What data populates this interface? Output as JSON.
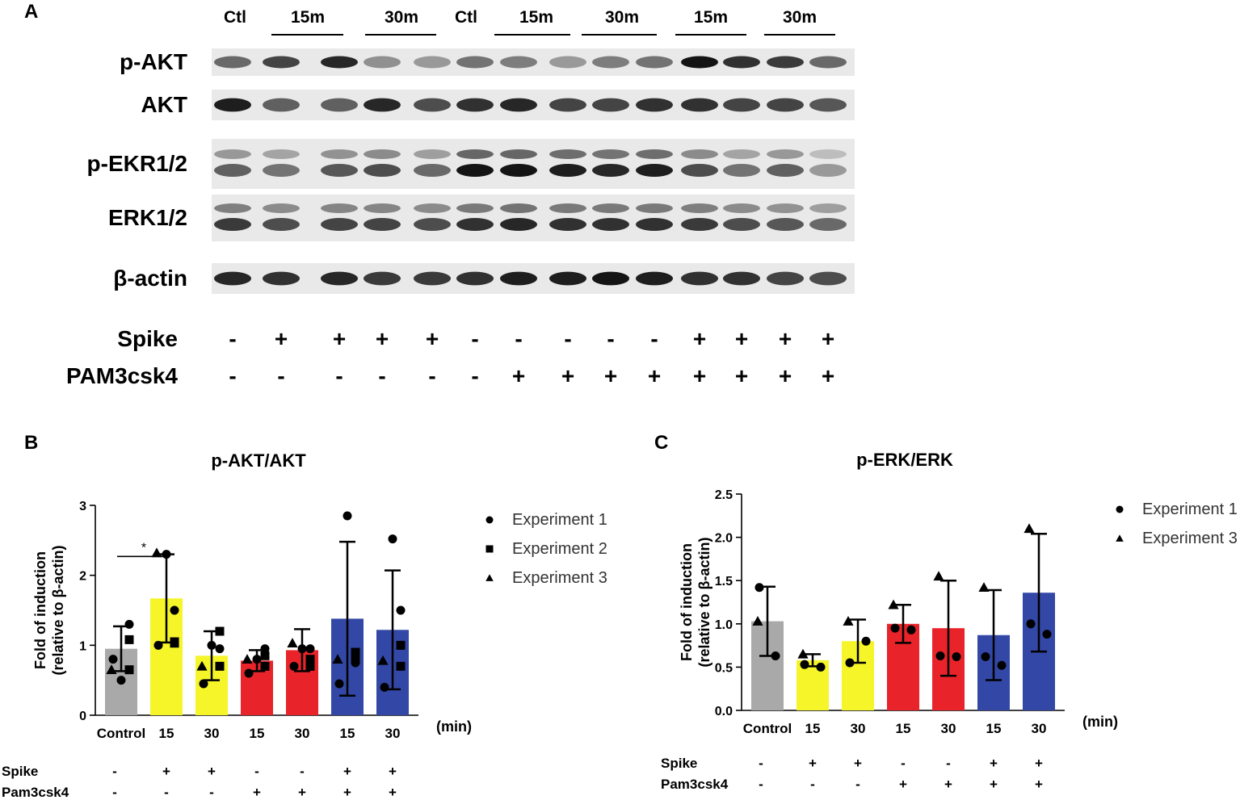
{
  "panels": {
    "a": "A",
    "b": "B",
    "c": "C"
  },
  "blot": {
    "lane_headers": [
      {
        "text": "Ctl"
      },
      {
        "text": "15m"
      },
      {
        "text": "30m"
      },
      {
        "text": "Ctl"
      },
      {
        "text": "15m"
      },
      {
        "text": "30m"
      },
      {
        "text": "15m"
      },
      {
        "text": "30m"
      }
    ],
    "rows": [
      {
        "label": "p-AKT",
        "intensity": [
          0.55,
          0.75,
          0.9,
          0.35,
          0.3,
          0.5,
          0.45,
          0.3,
          0.45,
          0.5,
          1.0,
          0.85,
          0.8,
          0.55
        ]
      },
      {
        "label": "AKT",
        "intensity": [
          0.95,
          0.6,
          0.6,
          0.9,
          0.7,
          0.85,
          0.9,
          0.75,
          0.75,
          0.85,
          0.85,
          0.75,
          0.75,
          0.65
        ]
      },
      {
        "label": "p-EKR1/2",
        "intensity": [
          0.6,
          0.5,
          0.65,
          0.7,
          0.55,
          1.0,
          1.0,
          0.95,
          0.9,
          0.95,
          0.7,
          0.5,
          0.6,
          0.3
        ]
      },
      {
        "label": "ERK1/2",
        "intensity": [
          0.8,
          0.7,
          0.75,
          0.75,
          0.7,
          0.85,
          0.9,
          0.85,
          0.85,
          0.85,
          0.8,
          0.7,
          0.65,
          0.55
        ]
      },
      {
        "label": "β-actin",
        "intensity": [
          0.9,
          0.85,
          0.9,
          0.8,
          0.8,
          0.85,
          0.95,
          0.95,
          1.0,
          0.95,
          0.85,
          0.85,
          0.75,
          0.7
        ]
      }
    ],
    "treatments": [
      {
        "label": "Spike",
        "values": [
          "-",
          "+",
          "+",
          "+",
          "+",
          "-",
          "-",
          "-",
          "-",
          "-",
          "+",
          "+",
          "+",
          "+"
        ]
      },
      {
        "label": "PAM3csk4",
        "values": [
          "-",
          "-",
          "-",
          "-",
          "-",
          "-",
          "+",
          "+",
          "+",
          "+",
          "+",
          "+",
          "+",
          "+"
        ]
      }
    ]
  },
  "charts": [
    {
      "title": "p-AKT/AKT",
      "unit": "(min)",
      "ylabel_line1": "Fold of induction",
      "ylabel_line2": "(relative to β-actin)",
      "yticks": [
        "0",
        "1",
        "2",
        "3"
      ],
      "significance": "*",
      "treatments": [
        {
          "label": "Spike",
          "values": [
            "-",
            "+",
            "+",
            "-",
            "-",
            "+",
            "+"
          ]
        },
        {
          "label": "Pam3csk4",
          "values": [
            "-",
            "-",
            "-",
            "+",
            "+",
            "+",
            "+"
          ]
        }
      ],
      "legend": [
        "Experiment 1",
        "Experiment 2",
        "Experiment 3"
      ]
    },
    {
      "title": "p-ERK/ERK",
      "unit": "(min)",
      "ylabel_line1": "Fold of induction",
      "ylabel_line2": "(relative to β-actin)",
      "yticks": [
        "0.0",
        "0.5",
        "1.0",
        "1.5",
        "2.0",
        "2.5"
      ],
      "treatments": [
        {
          "label": "Spike",
          "values": [
            "-",
            "+",
            "+",
            "-",
            "-",
            "+",
            "+"
          ]
        },
        {
          "label": "Pam3csk4",
          "values": [
            "-",
            "-",
            "-",
            "+",
            "+",
            "+",
            "+"
          ]
        }
      ],
      "legend": [
        "Experiment 1",
        "Experiment 3"
      ]
    }
  ],
  "chart_data": [
    {
      "type": "bar",
      "title": "p-AKT/AKT",
      "xlabel": "(min)",
      "ylabel": "Fold of induction (relative to β-actin)",
      "ylim": [
        0,
        3
      ],
      "categories": [
        "Control",
        "15",
        "30",
        "15",
        "30",
        "15",
        "30"
      ],
      "colors": [
        "#a9a9a9",
        "#f5f52a",
        "#f5f52a",
        "#e8242a",
        "#e8242a",
        "#3348a6",
        "#3348a6"
      ],
      "values": [
        0.95,
        1.67,
        0.85,
        0.78,
        0.93,
        1.38,
        1.22
      ],
      "error": [
        0.32,
        0.63,
        0.35,
        0.15,
        0.3,
        1.1,
        0.85
      ],
      "points": [
        {
          "name": "Experiment 1",
          "marker": "circle",
          "values": [
            [
              0.8,
              1.3,
              0.5
            ],
            [
              1.0,
              1.5,
              2.3
            ],
            [
              0.45,
              0.95,
              1.0
            ],
            [
              0.6,
              0.95,
              0.8
            ],
            [
              0.7,
              0.95,
              0.95
            ],
            [
              0.45,
              0.75,
              2.85
            ],
            [
              0.4,
              1.5,
              2.52
            ]
          ]
        },
        {
          "name": "Experiment 2",
          "marker": "square",
          "values": [
            [
              0.65,
              1.08
            ],
            [
              1.03,
              1.05
            ],
            [
              1.2,
              0.7
            ],
            [
              0.7,
              0.85
            ],
            [
              0.8,
              0.7
            ],
            [
              0.9,
              0.8
            ],
            [
              0.7,
              1.0
            ]
          ]
        },
        {
          "name": "Experiment 3",
          "marker": "triangle",
          "values": [
            [
              0.65
            ],
            [
              2.32
            ],
            [
              0.7
            ],
            [
              0.8
            ],
            [
              1.03
            ],
            [
              0.8
            ],
            [
              0.78
            ]
          ]
        }
      ]
    },
    {
      "type": "bar",
      "title": "p-ERK/ERK",
      "xlabel": "(min)",
      "ylabel": "Fold of induction (relative to β-actin)",
      "ylim": [
        0,
        2.5
      ],
      "categories": [
        "Control",
        "15",
        "30",
        "15",
        "30",
        "15",
        "30"
      ],
      "colors": [
        "#a9a9a9",
        "#f5f52a",
        "#f5f52a",
        "#e8242a",
        "#e8242a",
        "#3348a6",
        "#3348a6"
      ],
      "values": [
        1.03,
        0.58,
        0.8,
        1.0,
        0.95,
        0.87,
        1.36
      ],
      "error": [
        0.4,
        0.07,
        0.25,
        0.22,
        0.55,
        0.52,
        0.68
      ],
      "points": [
        {
          "name": "Experiment 1",
          "marker": "circle",
          "values": [
            [
              1.42,
              0.63
            ],
            [
              0.53,
              0.5
            ],
            [
              0.55,
              0.8
            ],
            [
              0.95,
              0.93
            ],
            [
              0.63,
              0.62
            ],
            [
              0.62,
              0.52
            ],
            [
              1.0,
              0.88
            ]
          ]
        },
        {
          "name": "Experiment 3",
          "marker": "triangle",
          "values": [
            [
              1.03
            ],
            [
              0.65
            ],
            [
              1.03
            ],
            [
              1.22
            ],
            [
              1.55
            ],
            [
              1.42
            ],
            [
              2.1
            ]
          ]
        }
      ]
    }
  ]
}
